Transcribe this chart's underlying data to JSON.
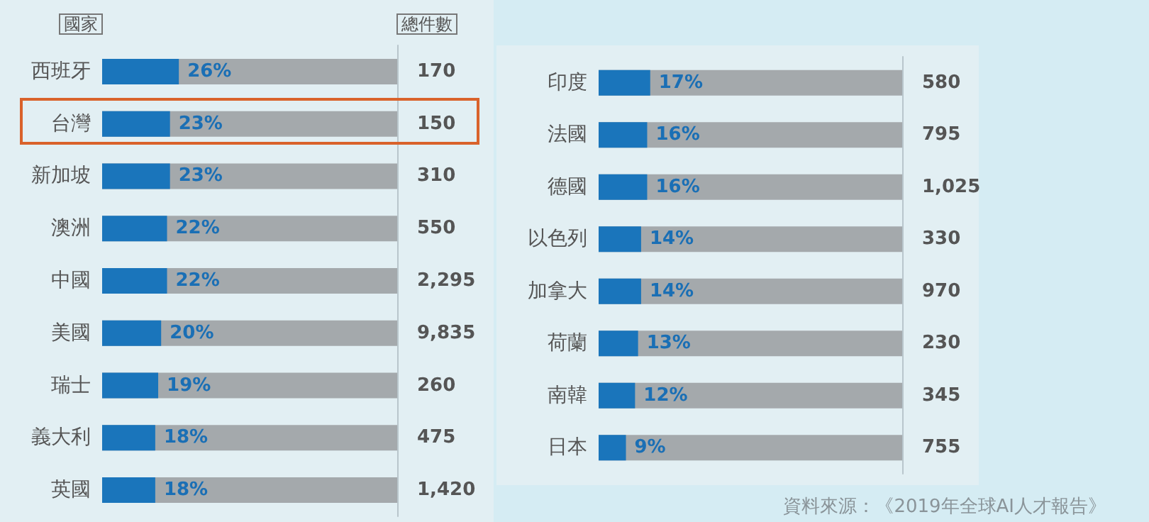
{
  "chart_data": [
    {
      "type": "bar",
      "orientation": "horizontal",
      "ylabel": "國家",
      "y2label": "總件數",
      "categories": [
        "西班牙",
        "台灣",
        "新加坡",
        "澳洲",
        "中國",
        "美國",
        "瑞士",
        "義大利",
        "英國"
      ],
      "values": [
        26,
        23,
        23,
        22,
        22,
        20,
        19,
        18,
        18
      ],
      "value_labels": [
        "26%",
        "23%",
        "23%",
        "22%",
        "22%",
        "20%",
        "19%",
        "18%",
        "18%"
      ],
      "color": "#1a75bb",
      "xlim": [
        0,
        100
      ],
      "annotations": [
        "170",
        "150",
        "310",
        "550",
        "2,295",
        "9,835",
        "260",
        "475",
        "1,420"
      ]
    },
    {
      "type": "bar",
      "orientation": "horizontal",
      "categories": [
        "印度",
        "法國",
        "德國",
        "以色列",
        "加拿大",
        "荷蘭",
        "南韓",
        "日本"
      ],
      "values": [
        17,
        16,
        16,
        14,
        14,
        13,
        12,
        9
      ],
      "value_labels": [
        "17%",
        "16%",
        "16%",
        "14%",
        "14%",
        "13%",
        "12%",
        "9%"
      ],
      "color": "#1a75bb",
      "xlim": [
        0,
        100
      ],
      "annotations": [
        "580",
        "795",
        "1,025",
        "330",
        "970",
        "230",
        "345",
        "755",
        "資料來源：《2019年全球AI人才報告》"
      ]
    }
  ]
}
